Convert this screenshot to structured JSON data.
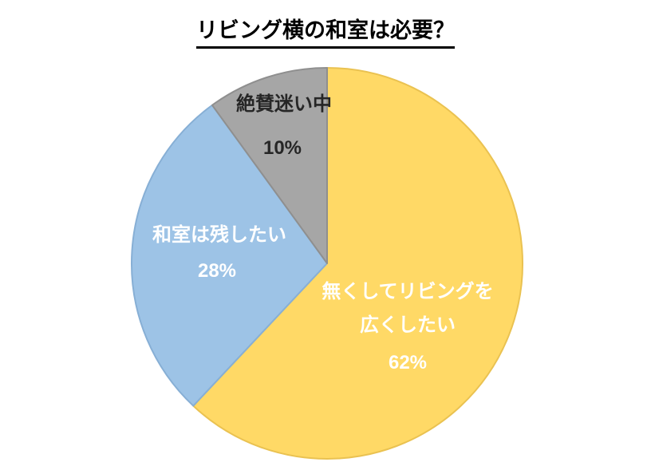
{
  "title": "リビング横の和室は必要？",
  "chart_data": {
    "type": "pie",
    "title": "リビング横の和室は必要？",
    "start_angle_deg": 0,
    "direction": "clockwise",
    "legend": "none",
    "slices": [
      {
        "label": "無くしてリビングを広くしたい",
        "pct_label": "62%",
        "value": 62,
        "color": "#FFD966",
        "border": "#EAC251",
        "text_color": "#FFFFFF"
      },
      {
        "label": "和室は残したい",
        "pct_label": "28%",
        "value": 28,
        "color": "#9DC3E6",
        "border": "#87AFD5",
        "text_color": "#FFFFFF"
      },
      {
        "label": "絶賛迷い中",
        "pct_label": "10%",
        "value": 10,
        "color": "#A6A6A6",
        "border": "#8F8F8F",
        "text_color": "#262626"
      }
    ]
  },
  "labels": {
    "gray_name": "絶賛迷い中",
    "gray_pct": "10%",
    "blue_name": "和室は残したい",
    "blue_pct": "28%",
    "yellow_line1": "無くしてリビングを",
    "yellow_line2": "広くしたい",
    "yellow_pct": "62%"
  }
}
